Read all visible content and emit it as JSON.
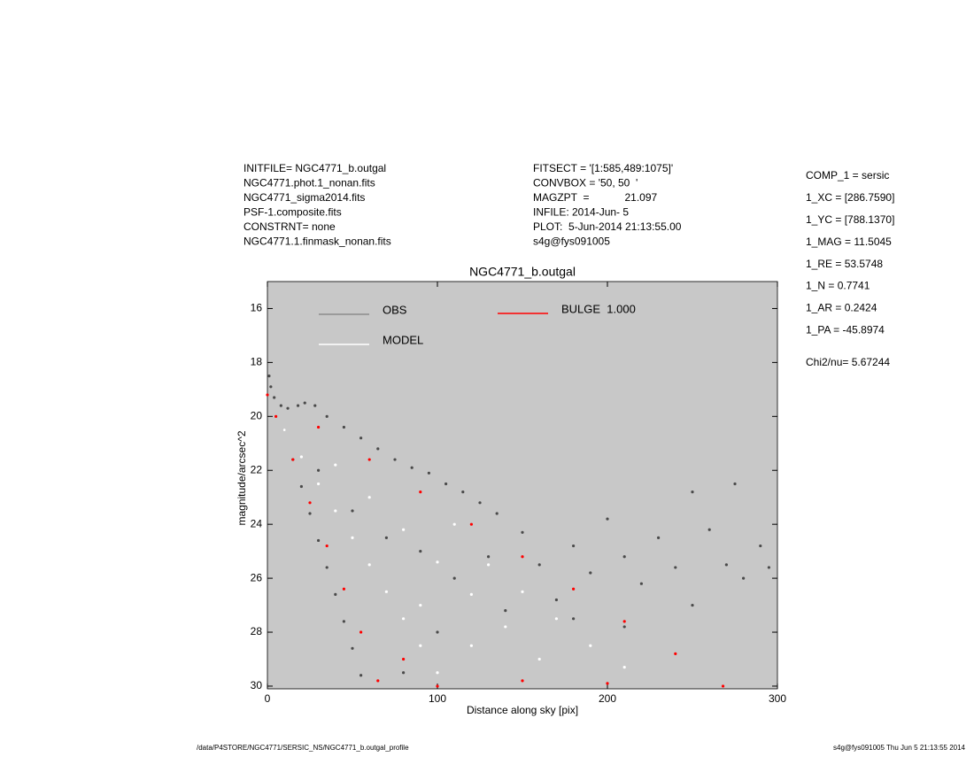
{
  "header": {
    "left": [
      "INITFILE= NGC4771_b.outgal",
      "NGC4771.phot.1_nonan.fits",
      "NGC4771_sigma2014.fits",
      "PSF-1.composite.fits",
      "CONSTRNT= none",
      "NGC4771.1.finmask_nonan.fits"
    ],
    "middle": [
      "FITSECT = '[1:585,489:1075]'",
      "CONVBOX = '50, 50  '",
      "MAGZPT  =            21.097",
      "INFILE: 2014-Jun- 5",
      "PLOT:  5-Jun-2014 21:13:55.00",
      "s4g@fys091005"
    ],
    "right": [
      "COMP_1  = sersic",
      "1_XC    = [286.7590]",
      "1_YC    = [788.1370]",
      "1_MAG   = 11.5045",
      "1_RE    = 53.5748",
      "1_N     = 0.7741",
      "1_AR    = 0.2424",
      "1_PA    = -45.8974"
    ],
    "chi2": "Chi2/nu=     5.67244"
  },
  "footer": {
    "path": "/data/P4STORE/NGC4771/SERSIC_NS/NGC4771_b.outgal_profile",
    "stamp": "s4g@fys091005  Thu Jun  5 21:13:55 2014"
  },
  "chart_data": {
    "type": "scatter",
    "title": "NGC4771_b.outgal",
    "xlabel": "Distance along sky [pix]",
    "ylabel": "magnitude/arcsec^2",
    "xlim": [
      0,
      300
    ],
    "ylim": [
      30.1,
      15
    ],
    "xticks": [
      0,
      100,
      200,
      300
    ],
    "yticks": [
      16,
      18,
      20,
      22,
      24,
      26,
      28,
      30
    ],
    "background": "#c8c8c8",
    "series": [
      {
        "name": "OBS",
        "color": "#4a4a4a",
        "legend_color": "#8c8c8c",
        "x": [
          1,
          2,
          4,
          8,
          12,
          18,
          22,
          28,
          35,
          45,
          55,
          65,
          75,
          85,
          95,
          105,
          115,
          125,
          135,
          10,
          15,
          20,
          25,
          30,
          35,
          40,
          45,
          50,
          55,
          30,
          50,
          70,
          90,
          110,
          130,
          150,
          160,
          170,
          180,
          190,
          200,
          210,
          220,
          230,
          240,
          250,
          260,
          270,
          280,
          290,
          295,
          275,
          250,
          180,
          210,
          140,
          100,
          80
        ],
        "y": [
          18.5,
          18.9,
          19.3,
          19.6,
          19.7,
          19.6,
          19.5,
          19.6,
          20.0,
          20.4,
          20.8,
          21.2,
          21.6,
          21.9,
          22.1,
          22.5,
          22.8,
          23.2,
          23.6,
          20.5,
          21.6,
          22.6,
          23.6,
          24.6,
          25.6,
          26.6,
          27.6,
          28.6,
          29.6,
          22.0,
          23.5,
          24.5,
          25.0,
          26.0,
          25.2,
          24.3,
          25.5,
          26.8,
          24.8,
          25.8,
          23.8,
          25.2,
          26.2,
          24.5,
          25.6,
          27.0,
          24.2,
          25.5,
          26.0,
          24.8,
          25.6,
          22.5,
          22.8,
          27.5,
          27.8,
          27.2,
          28.0,
          29.5
        ]
      },
      {
        "name": "MODEL",
        "color": "#ffffff",
        "legend_color": "#ffffff",
        "x": [
          10,
          20,
          30,
          40,
          50,
          60,
          70,
          80,
          90,
          100,
          40,
          60,
          80,
          100,
          120,
          140,
          160,
          110,
          130,
          150,
          170,
          190,
          210,
          90,
          120
        ],
        "y": [
          20.5,
          21.5,
          22.5,
          23.5,
          24.5,
          25.5,
          26.5,
          27.5,
          28.5,
          29.5,
          21.8,
          23.0,
          24.2,
          25.4,
          26.6,
          27.8,
          29.0,
          24.0,
          25.5,
          26.5,
          27.5,
          28.5,
          29.3,
          27.0,
          28.5
        ]
      },
      {
        "name": "BULGE  1.000",
        "color": "#ff0000",
        "legend_color": "#ff0000",
        "x": [
          0,
          30,
          60,
          90,
          120,
          150,
          180,
          210,
          240,
          268,
          5,
          15,
          25,
          35,
          45,
          55,
          65,
          100,
          150,
          200,
          80
        ],
        "y": [
          19.2,
          20.4,
          21.6,
          22.8,
          24.0,
          25.2,
          26.4,
          27.6,
          28.8,
          30.0,
          20.0,
          21.6,
          23.2,
          24.8,
          26.4,
          28.0,
          29.8,
          30.0,
          29.8,
          29.9,
          29.0
        ]
      }
    ]
  }
}
